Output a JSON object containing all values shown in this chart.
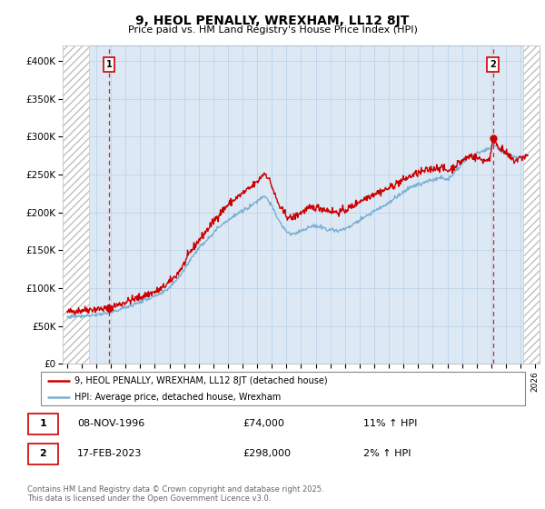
{
  "title": "9, HEOL PENALLY, WREXHAM, LL12 8JT",
  "subtitle": "Price paid vs. HM Land Registry's House Price Index (HPI)",
  "xlim_start": 1993.7,
  "xlim_end": 2026.3,
  "ylim": [
    0,
    420000
  ],
  "yticks": [
    0,
    50000,
    100000,
    150000,
    200000,
    250000,
    300000,
    350000,
    400000
  ],
  "ytick_labels": [
    "£0",
    "£50K",
    "£100K",
    "£150K",
    "£200K",
    "£250K",
    "£300K",
    "£350K",
    "£400K"
  ],
  "sale1_date": 1996.86,
  "sale1_price": 74000,
  "sale1_label": "1",
  "sale2_date": 2023.12,
  "sale2_price": 298000,
  "sale2_label": "2",
  "line_color_property": "#cc0000",
  "line_color_hpi": "#7ab0d4",
  "chart_bg_color": "#dce9f5",
  "background_color": "#ffffff",
  "grid_color": "#b8cfe8",
  "hatch_color": "#c0c0c0",
  "legend_label_property": "9, HEOL PENALLY, WREXHAM, LL12 8JT (detached house)",
  "legend_label_hpi": "HPI: Average price, detached house, Wrexham",
  "note1_label": "1",
  "note1_date": "08-NOV-1996",
  "note1_price": "£74,000",
  "note1_hpi": "11% ↑ HPI",
  "note2_label": "2",
  "note2_date": "17-FEB-2023",
  "note2_price": "£298,000",
  "note2_hpi": "2% ↑ HPI",
  "footer": "Contains HM Land Registry data © Crown copyright and database right 2025.\nThis data is licensed under the Open Government Licence v3.0.",
  "hatch_left_end": 1995.5,
  "hatch_right_start": 2025.2
}
